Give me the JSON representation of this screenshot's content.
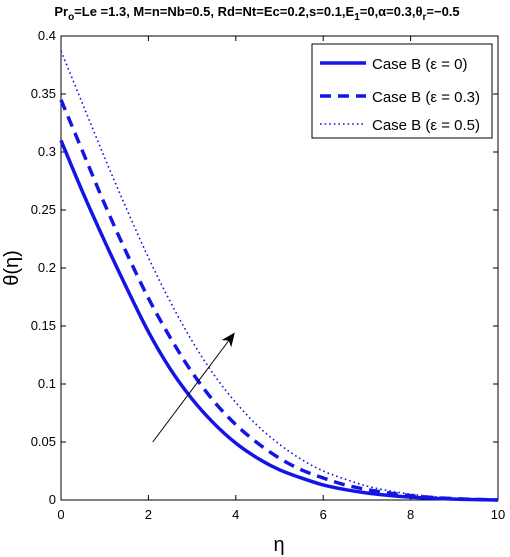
{
  "chart_data": {
    "type": "line",
    "title_parts": {
      "pr": "Pr",
      "pr_sub": "o",
      "mid": "=Le =1.3, M=n=Nb=0.5, Rd=Nt=Ec=0.2,s=0.1,E",
      "e_sub": "1",
      "alpha_part": "=0,α=0.3,θ",
      "theta_sub": "r",
      "tail": "=−0.5"
    },
    "xlabel": "η",
    "ylabel": "θ(η)",
    "xlim": [
      0,
      10
    ],
    "ylim": [
      0,
      0.4
    ],
    "xticks": [
      0,
      2,
      4,
      6,
      8,
      10
    ],
    "xtick_labels": [
      "0",
      "2",
      "4",
      "6",
      "8",
      "10"
    ],
    "yticks": [
      0,
      0.05,
      0.1,
      0.15,
      0.2,
      0.25,
      0.3,
      0.35,
      0.4
    ],
    "ytick_labels": [
      "0",
      "0.05",
      "0.1",
      "0.15",
      "0.2",
      "0.25",
      "0.3",
      "0.35",
      "0.4"
    ],
    "grid": false,
    "legend_position": "top-right",
    "line_color": "#1414e6",
    "series": [
      {
        "name": "Case B (ε = 0)",
        "style": "solid",
        "x": [
          0,
          0.5,
          1,
          1.5,
          2,
          2.5,
          3,
          3.5,
          4,
          4.5,
          5,
          5.5,
          6,
          6.5,
          7,
          7.5,
          8,
          8.5,
          9,
          9.5,
          10
        ],
        "y": [
          0.31,
          0.265,
          0.223,
          0.183,
          0.145,
          0.113,
          0.087,
          0.066,
          0.049,
          0.036,
          0.026,
          0.019,
          0.013,
          0.009,
          0.006,
          0.004,
          0.0025,
          0.0015,
          0.0008,
          0.0003,
          0
        ]
      },
      {
        "name": "Case B (ε = 0.3)",
        "style": "dashed",
        "x": [
          0,
          0.5,
          1,
          1.5,
          2,
          2.5,
          3,
          3.5,
          4,
          4.5,
          5,
          5.5,
          6,
          6.5,
          7,
          7.5,
          8,
          8.5,
          9,
          9.5,
          10
        ],
        "y": [
          0.345,
          0.3,
          0.255,
          0.213,
          0.174,
          0.14,
          0.11,
          0.085,
          0.065,
          0.049,
          0.036,
          0.026,
          0.019,
          0.013,
          0.009,
          0.006,
          0.0038,
          0.0022,
          0.0012,
          0.0005,
          0
        ]
      },
      {
        "name": "Case B (ε = 0.5)",
        "style": "dotted",
        "x": [
          0,
          0.5,
          1,
          1.5,
          2,
          2.5,
          3,
          3.5,
          4,
          4.5,
          5,
          5.5,
          6,
          6.5,
          7,
          7.5,
          8,
          8.5,
          9,
          9.5,
          10
        ],
        "y": [
          0.387,
          0.341,
          0.295,
          0.251,
          0.209,
          0.171,
          0.137,
          0.108,
          0.084,
          0.064,
          0.048,
          0.035,
          0.025,
          0.018,
          0.012,
          0.008,
          0.005,
          0.003,
          0.0016,
          0.0007,
          0
        ]
      }
    ],
    "annotation_arrow": {
      "from": [
        2.1,
        0.05
      ],
      "to": [
        3.95,
        0.143
      ]
    }
  }
}
